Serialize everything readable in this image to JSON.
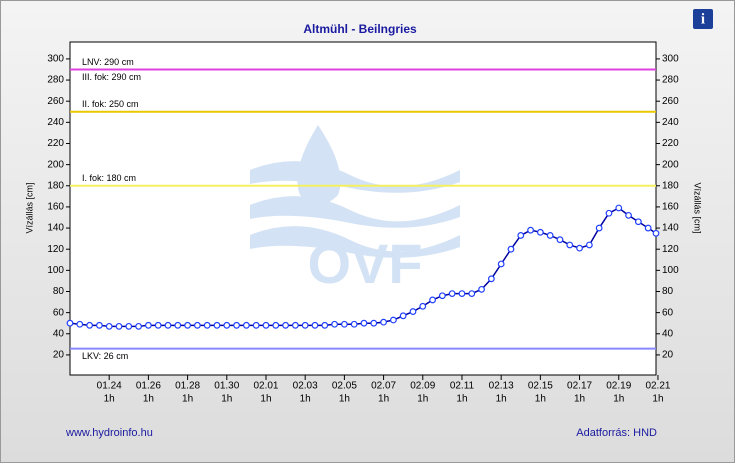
{
  "chart_data": {
    "type": "line",
    "title": "Altmühl - Beilngries",
    "ylabel": "Vízállás [cm]",
    "y2label": "Vízállás [cm]",
    "footer_left": "www.hydroinfo.hu",
    "footer_right": "Adatforrás: HND",
    "xlim": [
      0,
      29.9
    ],
    "ylim": [
      1,
      316
    ],
    "y2lim": [
      1,
      316
    ],
    "yticks": [
      20,
      40,
      60,
      80,
      100,
      120,
      140,
      160,
      180,
      200,
      220,
      240,
      260,
      280,
      300
    ],
    "xticks": [
      {
        "value": 2,
        "label": "01.24"
      },
      {
        "value": 4,
        "label": "01.26"
      },
      {
        "value": 6,
        "label": "01.28"
      },
      {
        "value": 8,
        "label": "01.30"
      },
      {
        "value": 10,
        "label": "02.01"
      },
      {
        "value": 12,
        "label": "02.03"
      },
      {
        "value": 14,
        "label": "02.05"
      },
      {
        "value": 16,
        "label": "02.07"
      },
      {
        "value": 18,
        "label": "02.09"
      },
      {
        "value": 20,
        "label": "02.11"
      },
      {
        "value": 22,
        "label": "02.13"
      },
      {
        "value": 24,
        "label": "02.15"
      },
      {
        "value": 26,
        "label": "02.17"
      },
      {
        "value": 28,
        "label": "02.19"
      },
      {
        "value": 30,
        "label": "02.21"
      }
    ],
    "xtick_sublabel": "1h",
    "levels": [
      {
        "label": "LNV: 290 cm",
        "value": 290,
        "color": "#e040e0",
        "position": "above"
      },
      {
        "label": "III. fok: 290 cm",
        "value": 290,
        "color": "#e040e0",
        "position": "below"
      },
      {
        "label": "II. fok: 250 cm",
        "value": 250,
        "color": "#e8c800",
        "position": "above"
      },
      {
        "label": "I. fok: 180 cm",
        "value": 180,
        "color": "#f4f060",
        "position": "above"
      },
      {
        "label": "LKV: 26 cm",
        "value": 26,
        "color": "#8888ff",
        "position": "below"
      }
    ],
    "series": [
      {
        "name": "Vízállás",
        "color": "#0000a0",
        "marker_color": "#2040ff",
        "x": [
          0,
          0.5,
          1,
          1.5,
          2,
          2.5,
          3,
          3.5,
          4,
          4.5,
          5,
          5.5,
          6,
          6.5,
          7,
          7.5,
          8,
          8.5,
          9,
          9.5,
          10,
          10.5,
          11,
          11.5,
          12,
          12.5,
          13,
          13.5,
          14,
          14.5,
          15,
          15.5,
          16,
          16.5,
          17,
          17.5,
          18,
          18.5,
          19,
          19.5,
          20,
          20.5,
          21,
          21.5,
          22,
          22.5,
          23,
          23.5,
          24,
          24.5,
          25,
          25.5,
          26,
          26.5,
          27,
          27.5,
          28,
          28.5,
          29,
          29.5,
          29.9
        ],
        "values": [
          50,
          49,
          48,
          48,
          47,
          47,
          47,
          47,
          48,
          48,
          48,
          48,
          48,
          48,
          48,
          48,
          48,
          48,
          48,
          48,
          48,
          48,
          48,
          48,
          48,
          48,
          48,
          49,
          49,
          49,
          50,
          50,
          51,
          53,
          57,
          61,
          66,
          72,
          76,
          78,
          78,
          78,
          82,
          92,
          106,
          120,
          133,
          138,
          136,
          133,
          129,
          124,
          121,
          124,
          140,
          154,
          159,
          152,
          146,
          140,
          135
        ]
      }
    ]
  }
}
